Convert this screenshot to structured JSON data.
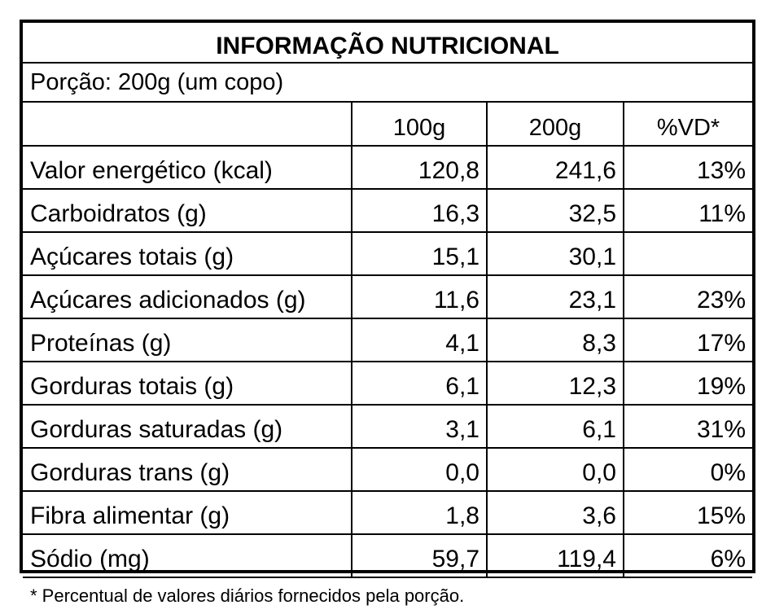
{
  "title": "INFORMAÇÃO NUTRICIONAL",
  "portion": "Porção: 200g (um copo)",
  "columns": [
    "",
    "100g",
    "200g",
    "%VD*"
  ],
  "rows": [
    {
      "name": "Valor energético (kcal)",
      "v100": "120,8",
      "v200": "241,6",
      "vd": "13%"
    },
    {
      "name": "Carboidratos  (g)",
      "v100": "16,3",
      "v200": "32,5",
      "vd": "11%"
    },
    {
      "name": "Açúcares totais  (g)",
      "v100": "15,1",
      "v200": "30,1",
      "vd": ""
    },
    {
      "name": "Açúcares adicionados  (g)",
      "v100": "11,6",
      "v200": "23,1",
      "vd": "23%"
    },
    {
      "name": "Proteínas   (g)",
      "v100": "4,1",
      "v200": "8,3",
      "vd": "17%"
    },
    {
      "name": "Gorduras totais (g)",
      "v100": "6,1",
      "v200": "12,3",
      "vd": "19%"
    },
    {
      "name": "Gorduras saturadas (g)",
      "v100": "3,1",
      "v200": "6,1",
      "vd": "31%"
    },
    {
      "name": "Gorduras trans (g)",
      "v100": "0,0",
      "v200": "0,0",
      "vd": "0%"
    },
    {
      "name": "Fibra  alimentar (g)",
      "v100": "1,8",
      "v200": "3,6",
      "vd": "15%"
    },
    {
      "name": "Sódio (mg)",
      "v100": "59,7",
      "v200": "119,4",
      "vd": "6%"
    }
  ],
  "footnote": "* Percentual de valores diários fornecidos pela porção."
}
